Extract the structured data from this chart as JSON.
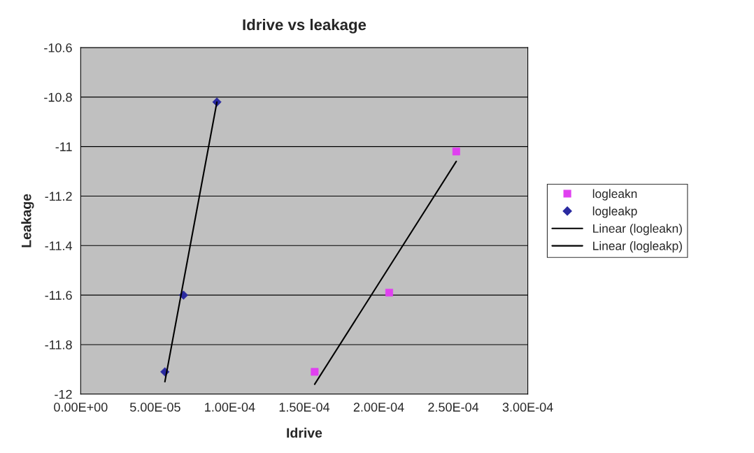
{
  "chart_data": {
    "type": "scatter",
    "title": "Idrive vs leakage",
    "xlabel": "Idrive",
    "ylabel": "Leakage",
    "xlim": [
      0,
      0.0003
    ],
    "ylim": [
      -12,
      -10.6
    ],
    "xticks": [
      {
        "value": 0,
        "label": "0.00E+00"
      },
      {
        "value": 5e-05,
        "label": "5.00E-05"
      },
      {
        "value": 0.0001,
        "label": "1.00E-04"
      },
      {
        "value": 0.00015,
        "label": "1.50E-04"
      },
      {
        "value": 0.0002,
        "label": "2.00E-04"
      },
      {
        "value": 0.00025,
        "label": "2.50E-04"
      },
      {
        "value": 0.0003,
        "label": "3.00E-04"
      }
    ],
    "yticks": [
      -12,
      -11.8,
      -11.6,
      -11.4,
      -11.2,
      -11,
      -10.8,
      -10.6
    ],
    "grid": "y",
    "legend": "right",
    "series": [
      {
        "name": "logleakn",
        "marker": "square",
        "color": "#e040f0",
        "x": [
          0.000157,
          0.000207,
          0.000252
        ],
        "values": [
          -11.91,
          -11.59,
          -11.02
        ]
      },
      {
        "name": "logleakp",
        "marker": "diamond",
        "color": "#2a2aa0",
        "x": [
          5.65e-05,
          6.9e-05,
          9.14e-05
        ],
        "values": [
          -11.91,
          -11.6,
          -10.82
        ]
      },
      {
        "name": "Linear (logleakn)",
        "type": "line",
        "marker": "none",
        "color": "#000000",
        "x": [
          0.000157,
          0.000252
        ],
        "values": [
          -11.96,
          -11.06
        ]
      },
      {
        "name": "Linear (logleakp)",
        "type": "line",
        "marker": "none",
        "color": "#000000",
        "x": [
          5.65e-05,
          9.14e-05
        ],
        "values": [
          -11.95,
          -10.82
        ]
      }
    ]
  }
}
